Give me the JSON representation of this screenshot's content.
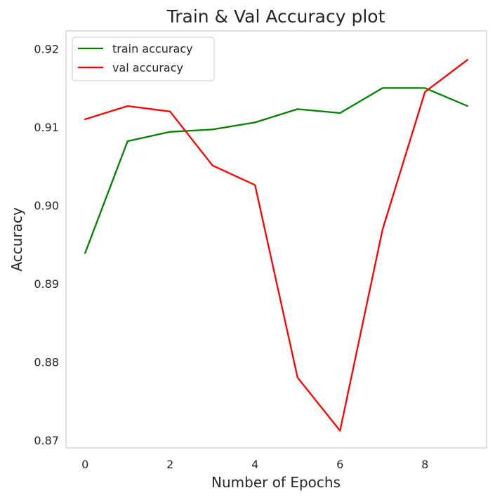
{
  "chart_data": {
    "type": "line",
    "title": "Train & Val Accuracy plot",
    "xlabel": "Number of Epochs",
    "ylabel": "Accuracy",
    "xlim": [
      -0.45,
      9.45
    ],
    "ylim": [
      0.869,
      0.9223
    ],
    "xticks": [
      0,
      2,
      4,
      6,
      8
    ],
    "yticks": [
      0.87,
      0.88,
      0.89,
      0.9,
      0.91,
      0.92
    ],
    "xtick_labels": [
      "0",
      "2",
      "4",
      "6",
      "8"
    ],
    "ytick_labels": [
      "0.87",
      "0.88",
      "0.89",
      "0.90",
      "0.91",
      "0.92"
    ],
    "grid": false,
    "legend_position": "top-left",
    "x": [
      0,
      1,
      2,
      3,
      4,
      5,
      6,
      7,
      8,
      9
    ],
    "series": [
      {
        "name": "train accuracy",
        "color": "#008000",
        "values": [
          0.8939,
          0.9082,
          0.9094,
          0.9097,
          0.9106,
          0.9123,
          0.9118,
          0.915,
          0.915,
          0.9127
        ]
      },
      {
        "name": "val accuracy",
        "color": "#ff0000",
        "values": [
          0.911,
          0.9127,
          0.912,
          0.9051,
          0.9026,
          0.878,
          0.8712,
          0.8969,
          0.9145,
          0.9186
        ]
      }
    ]
  }
}
